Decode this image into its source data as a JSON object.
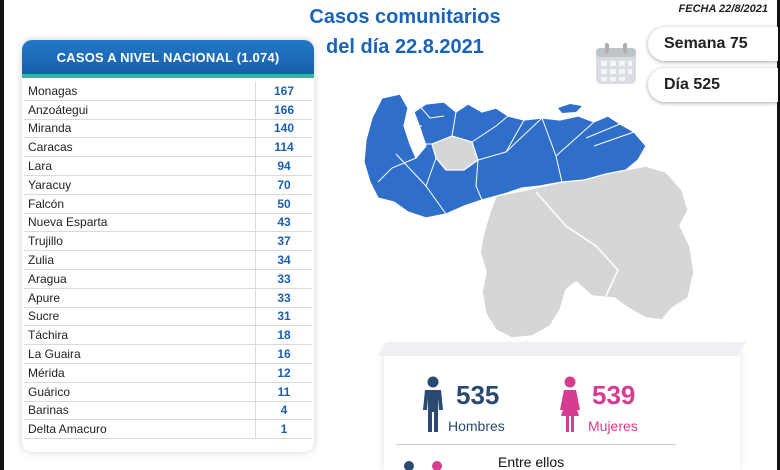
{
  "header": {
    "title_line1": "Casos comunitarios",
    "title_line2": "del día 22.8.2021",
    "date_label": "FECHA 22/8/2021"
  },
  "stats": {
    "week": "Semana 75",
    "day": "Día 525"
  },
  "table": {
    "title": "CASOS A NIVEL NACIONAL (1.074)",
    "rows": [
      {
        "state": "Monagas",
        "count": "167"
      },
      {
        "state": "Anzoátegui",
        "count": "166"
      },
      {
        "state": "Miranda",
        "count": "140"
      },
      {
        "state": "Caracas",
        "count": "114"
      },
      {
        "state": "Lara",
        "count": "94"
      },
      {
        "state": "Yaracuy",
        "count": "70"
      },
      {
        "state": "Falcón",
        "count": "50"
      },
      {
        "state": "Nueva Esparta",
        "count": "43"
      },
      {
        "state": "Trujillo",
        "count": "37"
      },
      {
        "state": "Zulia",
        "count": "34"
      },
      {
        "state": "Aragua",
        "count": "33"
      },
      {
        "state": "Apure",
        "count": "33"
      },
      {
        "state": "Sucre",
        "count": "31"
      },
      {
        "state": "Táchira",
        "count": "18"
      },
      {
        "state": "La Guaira",
        "count": "16"
      },
      {
        "state": "Mérida",
        "count": "12"
      },
      {
        "state": "Guárico",
        "count": "11"
      },
      {
        "state": "Barinas",
        "count": "4"
      },
      {
        "state": "Delta Amacuro",
        "count": "1"
      }
    ]
  },
  "gender": {
    "male_count": "535",
    "male_label": "Hombres",
    "female_count": "539",
    "female_label": "Mujeres",
    "between_label": "Entre ellos"
  },
  "colors": {
    "primary_blue": "#1a63b8",
    "map_blue": "#2f6fc9",
    "map_gray": "#d4d6d8",
    "female_pink": "#d63c8f",
    "male_navy": "#2a4a72",
    "header_accent": "#34b5a2"
  },
  "icons": [
    "calendar-icon",
    "male-person-icon",
    "female-person-icon"
  ]
}
